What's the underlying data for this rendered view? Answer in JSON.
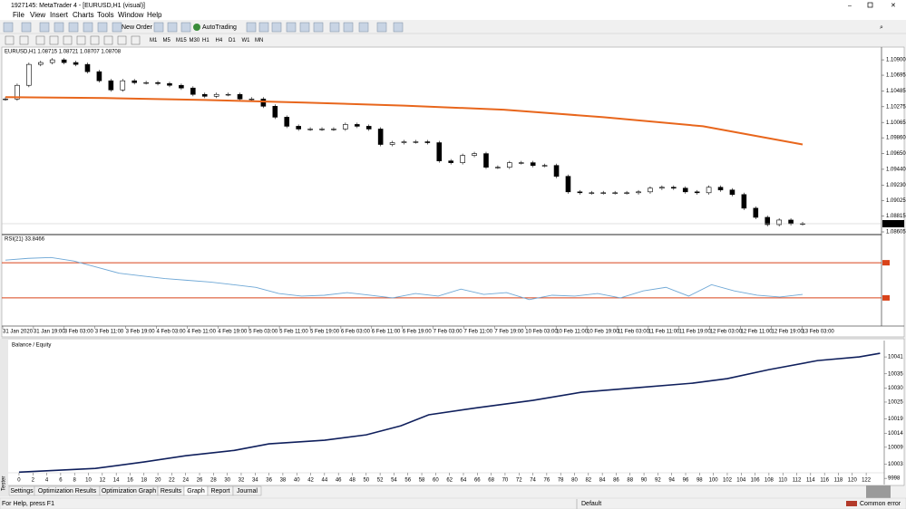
{
  "window": {
    "title": "1927145: MetaTrader 4 - [EURUSD,H1 (visual)]"
  },
  "menu": [
    "File",
    "View",
    "Insert",
    "Charts",
    "Tools",
    "Window",
    "Help"
  ],
  "toolbar": {
    "new_order": "New Order",
    "auto_trading": "AutoTrading",
    "timeframes": [
      "M1",
      "M5",
      "M15",
      "M30",
      "H1",
      "H4",
      "D1",
      "W1",
      "MN"
    ]
  },
  "main_chart": {
    "header": "EURUSD,H1 1.08715 1.08721 1.08707 1.08708",
    "current_price_label": "1.08708",
    "ylim": [
      1.08581,
      1.11046
    ],
    "yticks": [
      {
        "value": 1.109,
        "label": "1.10900"
      },
      {
        "value": 1.10695,
        "label": "1.10695"
      },
      {
        "value": 1.10485,
        "label": "1.10485"
      },
      {
        "value": 1.10275,
        "label": "1.10275"
      },
      {
        "value": 1.10065,
        "label": "1.10065"
      },
      {
        "value": 1.0986,
        "label": "1.09860"
      },
      {
        "value": 1.0965,
        "label": "1.09650"
      },
      {
        "value": 1.0944,
        "label": "1.09440"
      },
      {
        "value": 1.0923,
        "label": "1.09230"
      },
      {
        "value": 1.09025,
        "label": "1.09025"
      },
      {
        "value": 1.08815,
        "label": "1.08815"
      },
      {
        "value": 1.08605,
        "label": "1.08605"
      }
    ],
    "closes": [
      1.10378,
      1.1056,
      1.10839,
      1.10864,
      1.109,
      1.10864,
      1.10839,
      1.10742,
      1.10621,
      1.10499,
      1.10621,
      1.10596,
      1.10596,
      1.10584,
      1.1056,
      1.10524,
      1.10439,
      1.10414,
      1.10439,
      1.10439,
      1.10378,
      1.10378,
      1.10281,
      1.10135,
      1.10014,
      1.09977,
      1.09977,
      1.09977,
      1.09977,
      1.10038,
      1.10014,
      1.09977,
      1.09771,
      1.09795,
      1.09807,
      1.09807,
      1.09795,
      1.09552,
      1.09528,
      1.09625,
      1.09649,
      1.09467,
      1.09467,
      1.09528,
      1.09528,
      1.09491,
      1.09491,
      1.09346,
      1.09139,
      1.09127,
      1.09127,
      1.09127,
      1.09127,
      1.09127,
      1.09139,
      1.09188,
      1.092,
      1.09188,
      1.09139,
      1.09127,
      1.092,
      1.09164,
      1.09103,
      1.08921,
      1.08799,
      1.08702,
      1.08763,
      1.08714,
      1.08714
    ],
    "ma": {
      "color": "#e8661c",
      "values": [
        1.10402,
        1.1039,
        1.10365,
        1.1033,
        1.1029,
        1.10235,
        1.10135,
        1.10014,
        1.09771
      ]
    }
  },
  "rsi": {
    "label": "RSI(21) 33.8466",
    "ylim": [
      0,
      100
    ],
    "levels": [
      70,
      30
    ],
    "level_color": "#d9431a",
    "color": "#6fa8d6",
    "values": [
      73,
      75,
      76,
      72,
      65,
      58,
      55,
      52,
      50,
      48,
      45,
      42,
      35,
      32,
      33,
      36,
      33,
      30,
      35,
      32,
      40,
      34,
      36,
      28,
      33,
      32,
      35,
      30,
      38,
      42,
      32,
      45,
      38,
      33,
      31,
      34
    ]
  },
  "time_axis": [
    "31 Jan 2020",
    "31 Jan 19:00",
    "3 Feb 03:00",
    "3 Feb 11:00",
    "3 Feb 19:00",
    "4 Feb 03:00",
    "4 Feb 11:00",
    "4 Feb 19:00",
    "5 Feb 03:00",
    "5 Feb 11:00",
    "5 Feb 19:00",
    "6 Feb 03:00",
    "6 Feb 11:00",
    "6 Feb 19:00",
    "7 Feb 03:00",
    "7 Feb 11:00",
    "7 Feb 19:00",
    "10 Feb 03:00",
    "10 Feb 11:00",
    "10 Feb 19:00",
    "11 Feb 03:00",
    "11 Feb 11:00",
    "11 Feb 19:00",
    "12 Feb 03:00",
    "12 Feb 11:00",
    "12 Feb 19:00",
    "13 Feb 03:00"
  ],
  "balance_chart": {
    "label": "Balance / Equity",
    "color": "#0f1f5c",
    "xlim": [
      -1.3,
      124.6
    ],
    "ylim": [
      9995.8,
      10046.8
    ],
    "yticks": [
      10041,
      10035,
      10030,
      10025,
      10019,
      10014,
      10009,
      10003,
      9998
    ],
    "xticks": [
      0,
      2,
      4,
      6,
      8,
      10,
      12,
      14,
      16,
      18,
      20,
      22,
      24,
      26,
      28,
      30,
      32,
      34,
      36,
      38,
      40,
      42,
      44,
      46,
      48,
      50,
      52,
      54,
      56,
      58,
      60,
      62,
      64,
      66,
      68,
      70,
      72,
      74,
      76,
      78,
      80,
      82,
      84,
      86,
      88,
      90,
      92,
      94,
      96,
      98,
      100,
      102,
      104,
      106,
      108,
      110,
      112,
      114,
      116,
      118,
      120,
      122
    ],
    "x": [
      0,
      11,
      18,
      24,
      31,
      36,
      44,
      50,
      55,
      59,
      66,
      74,
      81,
      89,
      97,
      102,
      108,
      115,
      121,
      124
    ],
    "values": [
      10000.2,
      10001.5,
      10003.8,
      10006.0,
      10007.9,
      10010.2,
      10011.5,
      10013.4,
      10016.6,
      10020.5,
      10023.0,
      10025.6,
      10028.5,
      10030.1,
      10031.7,
      10033.3,
      10036.5,
      10039.7,
      10041.0,
      10042.3
    ]
  },
  "side_tab": "Tester",
  "tabs": [
    "Settings",
    "Optimization Results",
    "Optimization Graph",
    "Results",
    "Graph",
    "Report",
    "Journal"
  ],
  "active_tab": 4,
  "status": {
    "help": "For Help, press F1",
    "profile": "Default",
    "error": "Common error"
  }
}
